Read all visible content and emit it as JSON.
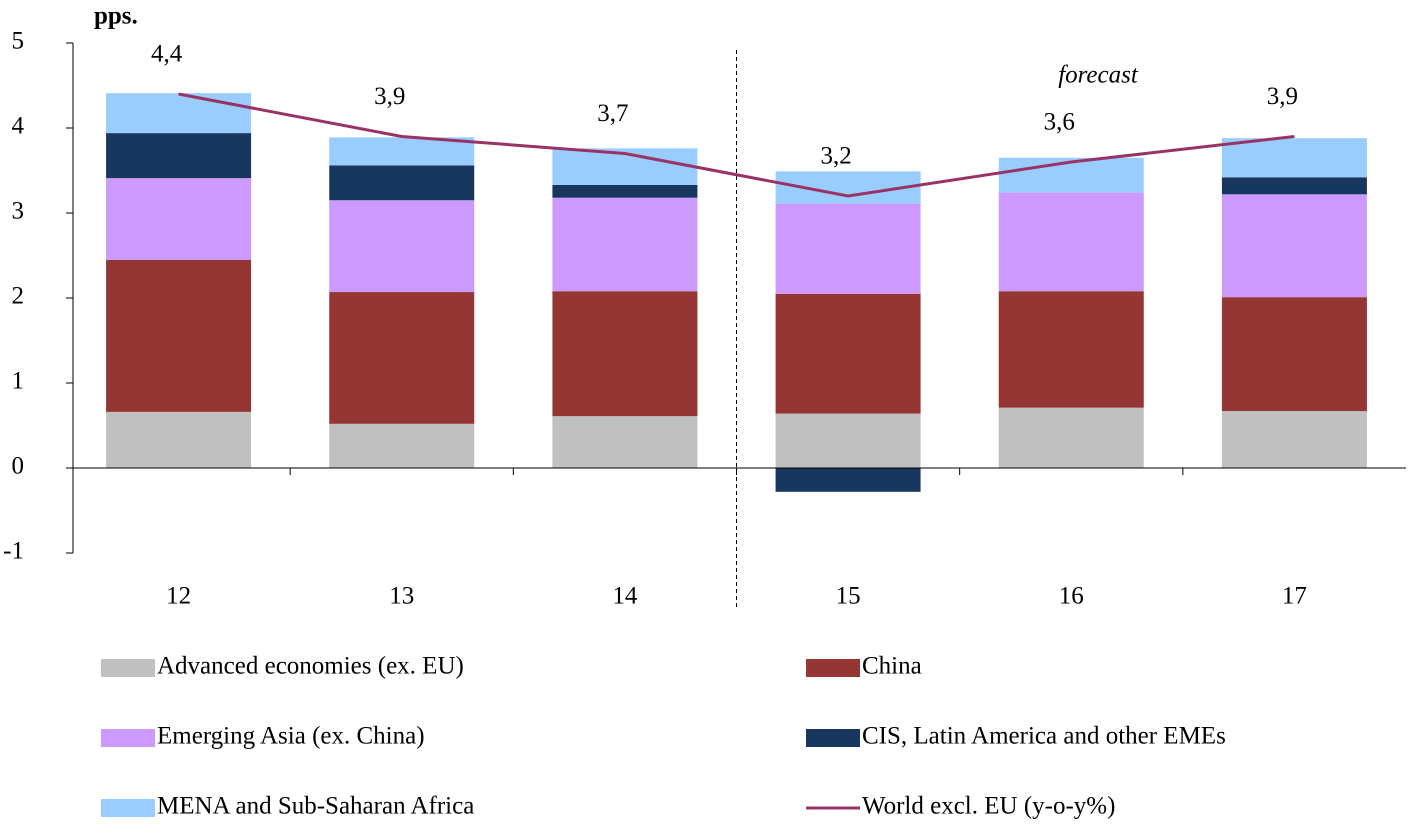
{
  "chart_data": {
    "type": "bar",
    "stacked": true,
    "y_unit": "pps.",
    "annotation": "forecast",
    "categories": [
      "12",
      "13",
      "14",
      "15",
      "16",
      "17"
    ],
    "series": [
      {
        "name": "Advanced economies (ex. EU)",
        "color": "#c0c0c0",
        "values": [
          0.66,
          0.52,
          0.61,
          0.64,
          0.71,
          0.67
        ]
      },
      {
        "name": "China",
        "color": "#963634",
        "values": [
          1.79,
          1.55,
          1.47,
          1.41,
          1.37,
          1.34
        ]
      },
      {
        "name": "Emerging Asia (ex. China)",
        "color": "#cc99ff",
        "values": [
          0.96,
          1.08,
          1.1,
          1.06,
          1.16,
          1.21
        ]
      },
      {
        "name": "CIS, Latin America and other EMEs",
        "color": "#17375e",
        "values": [
          0.53,
          0.41,
          0.15,
          -0.28,
          0,
          0.2
        ]
      },
      {
        "name": "MENA and Sub-Saharan Africa",
        "color": "#99ccff",
        "values": [
          0.47,
          0.33,
          0.43,
          0.38,
          0.41,
          0.46
        ]
      }
    ],
    "line": {
      "name": "World excl. EU (y-o-y%)",
      "color": "#993366",
      "values": [
        4.4,
        3.9,
        3.7,
        3.2,
        3.6,
        3.9
      ],
      "value_labels": [
        "4,4",
        "3,9",
        "3,7",
        "3,2",
        "3,6",
        "3,9"
      ]
    },
    "ylim": [
      -1,
      5
    ],
    "yticks": [
      -1,
      0,
      1,
      2,
      3,
      4,
      5
    ]
  }
}
